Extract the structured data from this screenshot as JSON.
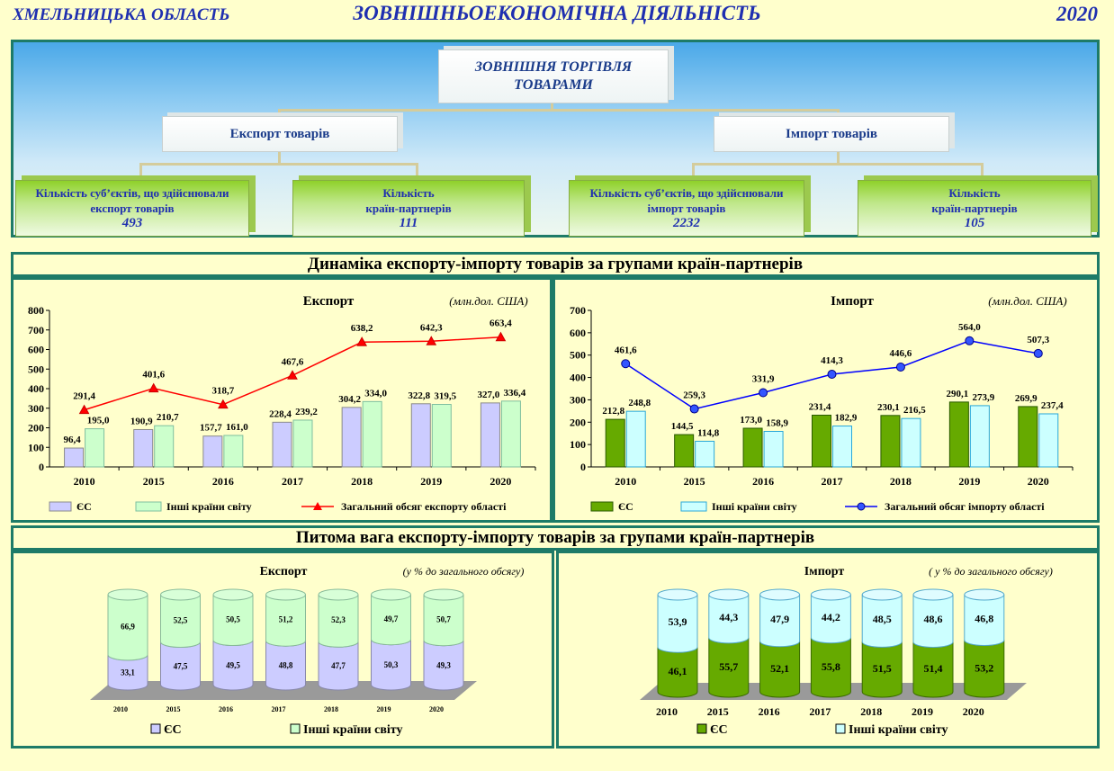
{
  "header": {
    "region": "ХМЕЛЬНИЦЬКА ОБЛАСТЬ",
    "title": "ЗОВНІШНЬОЕКОНОМІЧНА  ДІЯЛЬНІСТЬ",
    "year": "2020"
  },
  "tree": {
    "root_line1": "ЗОВНІШНЯ ТОРГІВЛЯ",
    "root_line2": "ТОВАРАМИ",
    "export_label": "Експорт товарів",
    "import_label": "Імпорт товарів",
    "exp_subjects_l1": "Кількість суб’єктів, що здійснювали",
    "exp_subjects_l2": "експорт товарів",
    "exp_subjects_value": "493",
    "exp_partners_l1": "Кількість",
    "exp_partners_l2": "країн-партнерів",
    "exp_partners_value": "111",
    "imp_subjects_l1": "Кількість суб’єктів, що здійснювали",
    "imp_subjects_l2": "імпорт товарів",
    "imp_subjects_value": "2232",
    "imp_partners_l1": "Кількість",
    "imp_partners_l2": "країн-партнерів",
    "imp_partners_value": "105"
  },
  "sections": {
    "dynamics_title": "Динаміка експорту-імпорту товарів за групами країн-партнерів",
    "share_title": "Питома вага експорту-імпорту товарів за групами країн-партнерів"
  },
  "colors": {
    "eu_export": "#ccccff",
    "other_export": "#ccffcc",
    "eu_import": "#66aa00",
    "other_import": "#ccffff",
    "export_line": "#ff0000",
    "import_line": "#0000ff"
  },
  "chart_data": [
    {
      "type": "bar",
      "title": "Експорт",
      "unit": "(млн.дол. США)",
      "categories": [
        "2010",
        "2015",
        "2016",
        "2017",
        "2018",
        "2019",
        "2020"
      ],
      "ylim": [
        0,
        800
      ],
      "yticks": [
        0,
        100,
        200,
        300,
        400,
        500,
        600,
        700,
        800
      ],
      "series": [
        {
          "name": "ЄС",
          "kind": "bar",
          "values": [
            96.4,
            190.9,
            157.7,
            228.4,
            304.2,
            322.8,
            327.0
          ],
          "labels": [
            "96,4",
            "190,9",
            "157,7",
            "228,4",
            "304,2",
            "322,8",
            "327,0"
          ]
        },
        {
          "name": "Інші країни світу",
          "kind": "bar",
          "values": [
            195.0,
            210.7,
            161.0,
            239.2,
            334.0,
            319.5,
            336.4
          ],
          "labels": [
            "195,0",
            "210,7",
            "161,0",
            "239,2",
            "334,0",
            "319,5",
            "336,4"
          ]
        },
        {
          "name": "Загальний обсяг експорту області",
          "kind": "line",
          "values": [
            291.4,
            401.6,
            318.7,
            467.6,
            638.2,
            642.3,
            663.4
          ],
          "labels": [
            "291,4",
            "401,6",
            "318,7",
            "467,6",
            "638,2",
            "642,3",
            "663,4"
          ]
        }
      ]
    },
    {
      "type": "bar",
      "title": "Імпорт",
      "unit": "(млн.дол. США)",
      "categories": [
        "2010",
        "2015",
        "2016",
        "2017",
        "2018",
        "2019",
        "2020"
      ],
      "ylim": [
        0,
        700
      ],
      "yticks": [
        0,
        100,
        200,
        300,
        400,
        500,
        600,
        700
      ],
      "series": [
        {
          "name": "ЄС",
          "kind": "bar",
          "values": [
            212.8,
            144.5,
            173.0,
            231.4,
            230.1,
            290.1,
            269.9
          ],
          "labels": [
            "212,8",
            "144,5",
            "173,0",
            "231,4",
            "230,1",
            "290,1",
            "269,9"
          ]
        },
        {
          "name": "Інші країни світу",
          "kind": "bar",
          "values": [
            248.8,
            114.8,
            158.9,
            182.9,
            216.5,
            273.9,
            237.4
          ],
          "labels": [
            "248,8",
            "114,8",
            "158,9",
            "182,9",
            "216,5",
            "273,9",
            "237,4"
          ]
        },
        {
          "name": "Загальний обсяг імпорту області",
          "kind": "line",
          "values": [
            461.6,
            259.3,
            331.9,
            414.3,
            446.6,
            564.0,
            507.3
          ],
          "labels": [
            "461,6",
            "259,3",
            "331,9",
            "414,3",
            "446,6",
            "564,0",
            "507,3"
          ]
        }
      ]
    },
    {
      "type": "bar",
      "stacked": true,
      "title": "Експорт",
      "unit": "(у % до загального обсягу)",
      "categories": [
        "2010",
        "2015",
        "2016",
        "2017",
        "2018",
        "2019",
        "2020"
      ],
      "series": [
        {
          "name": "ЄС",
          "values": [
            33.1,
            47.5,
            49.5,
            48.8,
            47.7,
            50.3,
            49.3
          ],
          "labels": [
            "33,1",
            "47,5",
            "49,5",
            "48,8",
            "47,7",
            "50,3",
            "49,3"
          ]
        },
        {
          "name": "Інші країни світу",
          "values": [
            66.9,
            52.5,
            50.5,
            51.2,
            52.3,
            49.7,
            50.7
          ],
          "labels": [
            "66,9",
            "52,5",
            "50,5",
            "51,2",
            "52,3",
            "49,7",
            "50,7"
          ]
        }
      ]
    },
    {
      "type": "bar",
      "stacked": true,
      "title": "Імпорт",
      "unit": "( у % до загального обсягу)",
      "categories": [
        "2010",
        "2015",
        "2016",
        "2017",
        "2018",
        "2019",
        "2020"
      ],
      "series": [
        {
          "name": "ЄС",
          "values": [
            46.1,
            55.7,
            52.1,
            55.8,
            51.5,
            51.4,
            53.2
          ],
          "labels": [
            "46,1",
            "55,7",
            "52,1",
            "55,8",
            "51,5",
            "51,4",
            "53,2"
          ]
        },
        {
          "name": "Інші країни світу",
          "values": [
            53.9,
            44.3,
            47.9,
            44.2,
            48.5,
            48.6,
            46.8
          ],
          "labels": [
            "53,9",
            "44,3",
            "47,9",
            "44,2",
            "48,5",
            "48,6",
            "46,8"
          ]
        }
      ]
    }
  ]
}
